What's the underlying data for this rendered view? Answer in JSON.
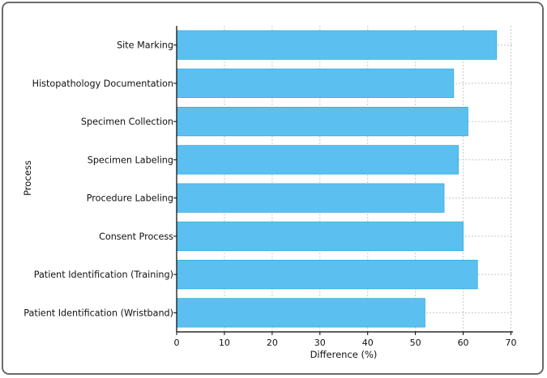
{
  "chart_data": {
    "type": "bar",
    "orientation": "horizontal",
    "categories": [
      "Site Marking",
      "Histopathology Documentation",
      "Specimen Collection",
      "Specimen Labeling",
      "Procedure Labeling",
      "Consent Process",
      "Patient Identification (Training)",
      "Patient Identification (Wristband)"
    ],
    "values": [
      67,
      58,
      61,
      59,
      56,
      60,
      63,
      52
    ],
    "xlabel": "Difference (%)",
    "ylabel": "Process",
    "xlim": [
      0,
      70
    ],
    "xticks": [
      "0",
      "10",
      "20",
      "30",
      "40",
      "50",
      "60",
      "70"
    ],
    "grid": true,
    "colors": {
      "bar": "#5bc0ef",
      "bar_edge": "#3aa9dd",
      "grid": "#c8c8c8",
      "axis": "#000000"
    }
  }
}
